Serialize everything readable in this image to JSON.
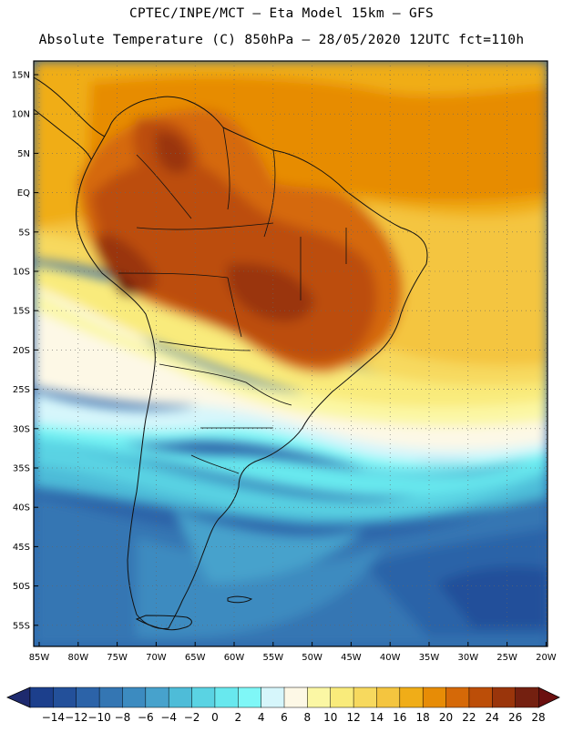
{
  "header": {
    "line1": "CPTEC/INPE/MCT –   Eta Model 15km – GFS",
    "line2": "Absolute Temperature (C) 850hPa – 28/05/2020 12UTC fct=110h"
  },
  "axes": {
    "lat_labels": [
      "15N",
      "10N",
      "5N",
      "EQ",
      "5S",
      "10S",
      "15S",
      "20S",
      "25S",
      "30S",
      "35S",
      "40S",
      "45S",
      "50S",
      "55S"
    ],
    "lon_labels": [
      "85W",
      "80W",
      "75W",
      "70W",
      "65W",
      "60W",
      "55W",
      "50W",
      "45W",
      "40W",
      "35W",
      "30W",
      "25W",
      "20W"
    ]
  },
  "colorbar": {
    "labels": [
      "-14",
      "-12",
      "-10",
      "-8",
      "-6",
      "-4",
      "-2",
      "0",
      "2",
      "4",
      "6",
      "8",
      "10",
      "12",
      "14",
      "16",
      "18",
      "20",
      "22",
      "24",
      "26",
      "28"
    ],
    "colors": [
      "#1c3f8c",
      "#23509a",
      "#2c63a8",
      "#3476b3",
      "#3c8bc0",
      "#47a2cc",
      "#4ebcd8",
      "#5ad3e3",
      "#68e8ee",
      "#7ff7f7",
      "#d6f6fb",
      "#fdf8e6",
      "#fbf7a4",
      "#f9eb7b",
      "#f7d95e",
      "#f4c53f",
      "#f0ad18",
      "#e78c06",
      "#d56908",
      "#bc4e08",
      "#9a350b",
      "#742010"
    ],
    "under_color": "#1e2a6e",
    "over_color": "#6b0f0f"
  }
}
